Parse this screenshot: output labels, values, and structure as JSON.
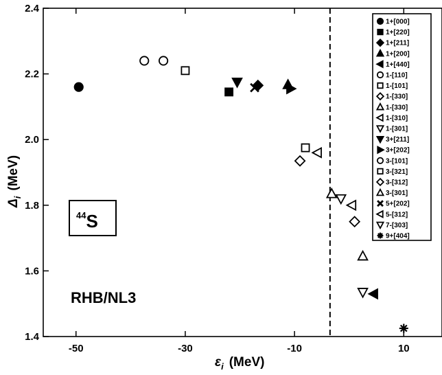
{
  "chart_data": {
    "type": "scatter",
    "title": "",
    "xlabel": {
      "main": "ε",
      "sub": "i",
      "unit": "(MeV)"
    },
    "ylabel": {
      "main": "Δ",
      "sub": "i",
      "unit": "(MeV)"
    },
    "xlim": [
      -56,
      17
    ],
    "ylim": [
      1.4,
      2.4
    ],
    "x_ticks": [
      -50,
      -30,
      -10,
      10
    ],
    "y_ticks": [
      1.4,
      1.6,
      1.8,
      2.0,
      2.2,
      2.4
    ],
    "x_tick_labels": [
      "-50",
      "-30",
      "-10",
      "10"
    ],
    "y_tick_labels": [
      "1.4",
      "1.6",
      "1.8",
      "2.0",
      "2.2",
      "2.4"
    ],
    "reference_line": {
      "x": -3.5,
      "style": "dashed"
    },
    "grid": false,
    "legend_position": "top-right",
    "annotations": {
      "nucleus_mass": "44",
      "nucleus_symbol": "S",
      "model": "RHB/NL3"
    },
    "series": [
      {
        "name": "1+[000]",
        "marker": "circle",
        "filled": true,
        "points": [
          [
            -49.5,
            2.16
          ]
        ]
      },
      {
        "name": "1+[220]",
        "marker": "square",
        "filled": true,
        "points": [
          [
            -22,
            2.145
          ]
        ]
      },
      {
        "name": "1+[211]",
        "marker": "diamond",
        "filled": true,
        "points": [
          [
            -16.7,
            2.165
          ]
        ]
      },
      {
        "name": "1+[200]",
        "marker": "triangle-up",
        "filled": true,
        "points": [
          [
            -11.2,
            2.167
          ]
        ]
      },
      {
        "name": "1+[440]",
        "marker": "triangle-left",
        "filled": true,
        "points": [
          [
            4.5,
            1.53
          ]
        ]
      },
      {
        "name": "1-[110]",
        "marker": "circle",
        "filled": false,
        "points": [
          [
            -37.5,
            2.24
          ]
        ]
      },
      {
        "name": "1-[101]",
        "marker": "square",
        "filled": false,
        "points": [
          [
            -30,
            2.21
          ]
        ]
      },
      {
        "name": "1-[330]",
        "marker": "diamond",
        "filled": false,
        "points": [
          [
            -9,
            1.935
          ]
        ]
      },
      {
        "name": "1-[330]",
        "marker": "triangle-up",
        "filled": false,
        "points": [
          [
            -3.2,
            1.835
          ]
        ]
      },
      {
        "name": "1-[310]",
        "marker": "triangle-left",
        "filled": false,
        "points": [
          [
            0.5,
            1.8
          ]
        ]
      },
      {
        "name": "1-[301]",
        "marker": "triangle-down",
        "filled": false,
        "points": [
          [
            -1.5,
            1.82
          ]
        ]
      },
      {
        "name": "3+[211]",
        "marker": "triangle-down",
        "filled": true,
        "points": [
          [
            -20.5,
            2.175
          ]
        ]
      },
      {
        "name": "3+[202]",
        "marker": "triangle-right",
        "filled": true,
        "points": [
          [
            -10.7,
            2.155
          ]
        ]
      },
      {
        "name": "3-[101]",
        "marker": "circle",
        "filled": false,
        "points": [
          [
            -34,
            2.24
          ]
        ]
      },
      {
        "name": "3-[321]",
        "marker": "square",
        "filled": false,
        "points": [
          [
            -8,
            1.975
          ]
        ]
      },
      {
        "name": "3-[312]",
        "marker": "diamond",
        "filled": false,
        "points": [
          [
            1,
            1.75
          ]
        ]
      },
      {
        "name": "3-[301]",
        "marker": "triangle-up",
        "filled": false,
        "points": [
          [
            2.5,
            1.645
          ]
        ]
      },
      {
        "name": "5+[202]",
        "marker": "x",
        "filled": true,
        "points": [
          [
            -17.3,
            2.158
          ]
        ]
      },
      {
        "name": "5-[312]",
        "marker": "triangle-left",
        "filled": false,
        "points": [
          [
            -5.8,
            1.96
          ]
        ]
      },
      {
        "name": "7-[303]",
        "marker": "triangle-down",
        "filled": false,
        "points": [
          [
            2.5,
            1.535
          ]
        ]
      },
      {
        "name": "9+[404]",
        "marker": "asterisk",
        "filled": true,
        "points": [
          [
            10,
            1.425
          ]
        ]
      }
    ]
  }
}
